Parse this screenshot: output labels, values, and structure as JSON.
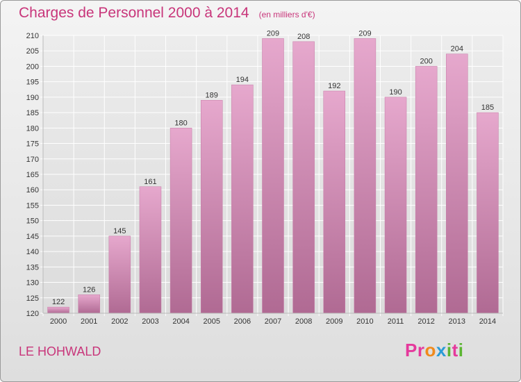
{
  "chart_data": {
    "type": "bar",
    "title": "Charges de Personnel 2000 à 2014",
    "subtitle": "(en milliers d'€)",
    "categories": [
      "2000",
      "2001",
      "2002",
      "2003",
      "2004",
      "2005",
      "2006",
      "2007",
      "2008",
      "2009",
      "2010",
      "2011",
      "2012",
      "2013",
      "2014"
    ],
    "values": [
      122,
      126,
      145,
      161,
      180,
      189,
      194,
      209,
      208,
      192,
      209,
      190,
      200,
      204,
      185
    ],
    "ylim": [
      120,
      210
    ],
    "yticks": [
      120,
      125,
      130,
      135,
      140,
      145,
      150,
      155,
      160,
      165,
      170,
      175,
      180,
      185,
      190,
      195,
      200,
      205,
      210
    ],
    "grid": true,
    "bar_color": "#d48ab6"
  },
  "commune": "LE HOHWALD",
  "logo": {
    "letters": [
      "P",
      "r",
      "o",
      "x",
      "i",
      "t",
      "i"
    ],
    "colors": [
      "#e5399c",
      "#e5399c",
      "#f08a1c",
      "#2a9bd6",
      "#5bb531",
      "#e5399c",
      "#5bb531"
    ]
  }
}
